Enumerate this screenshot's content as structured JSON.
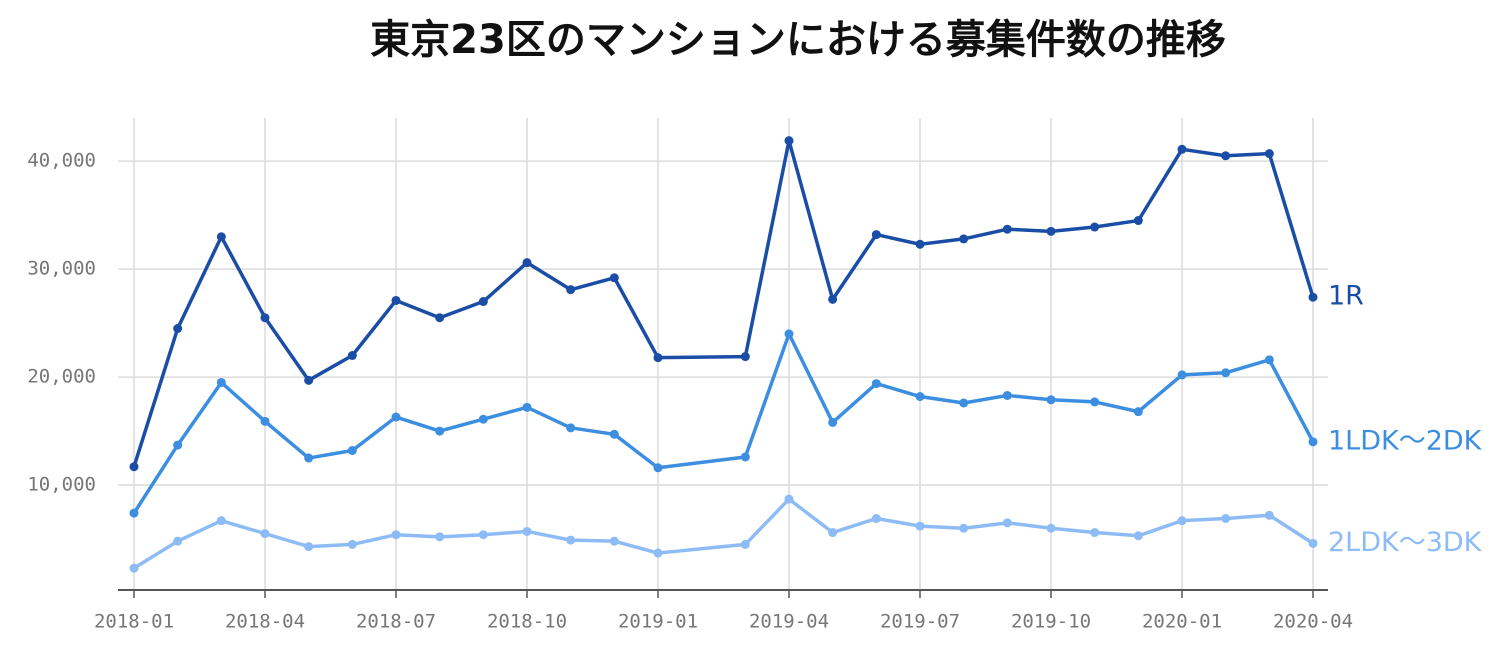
{
  "chart_data": {
    "type": "line",
    "title": "東京23区のマンションにおける募集件数の推移",
    "x": [
      "2018-01",
      "2018-02",
      "2018-03",
      "2018-04",
      "2018-05",
      "2018-06",
      "2018-07",
      "2018-08",
      "2018-09",
      "2018-10",
      "2018-11",
      "2018-12",
      "2019-01",
      "2019-03",
      "2019-04",
      "2019-05",
      "2019-06",
      "2019-07",
      "2019-08",
      "2019-09",
      "2019-10",
      "2019-11",
      "2019-12",
      "2020-01",
      "2020-02",
      "2020-03",
      "2020-04"
    ],
    "xlim": [
      "2018-01",
      "2020-04"
    ],
    "xticks": [
      "2018-01",
      "2018-04",
      "2018-07",
      "2018-10",
      "2019-01",
      "2019-04",
      "2019-07",
      "2019-10",
      "2020-01",
      "2020-04"
    ],
    "ylim": [
      0,
      44000
    ],
    "yticks": [
      {
        "value": 10000,
        "label": "10,000"
      },
      {
        "value": 20000,
        "label": "20,000"
      },
      {
        "value": 30000,
        "label": "30,000"
      },
      {
        "value": 40000,
        "label": "40,000"
      }
    ],
    "grid": true,
    "series": [
      {
        "name": "1R",
        "color": "#1a4ea6",
        "values": [
          11700,
          24500,
          33000,
          25500,
          19700,
          22000,
          27100,
          25500,
          27000,
          30600,
          28100,
          29200,
          21800,
          21900,
          41900,
          27200,
          33200,
          32300,
          32800,
          33700,
          33500,
          33900,
          34500,
          41100,
          40500,
          40700,
          27400
        ]
      },
      {
        "name": "1LDK～2DK",
        "color": "#3b8ee0",
        "values": [
          7400,
          13700,
          19500,
          15900,
          12500,
          13200,
          16300,
          15000,
          16100,
          17200,
          15300,
          14700,
          11600,
          12600,
          24000,
          15800,
          19400,
          18200,
          17600,
          18300,
          17900,
          17700,
          16800,
          20200,
          20400,
          21600,
          14000
        ]
      },
      {
        "name": "2LDK～3DK",
        "color": "#8dbbf5",
        "values": [
          2300,
          4800,
          6700,
          5500,
          4300,
          4500,
          5400,
          5200,
          5400,
          5700,
          4900,
          4800,
          3700,
          4500,
          8700,
          5600,
          6900,
          6200,
          6000,
          6500,
          6000,
          5600,
          5300,
          6700,
          6900,
          7200,
          4600
        ]
      }
    ]
  }
}
